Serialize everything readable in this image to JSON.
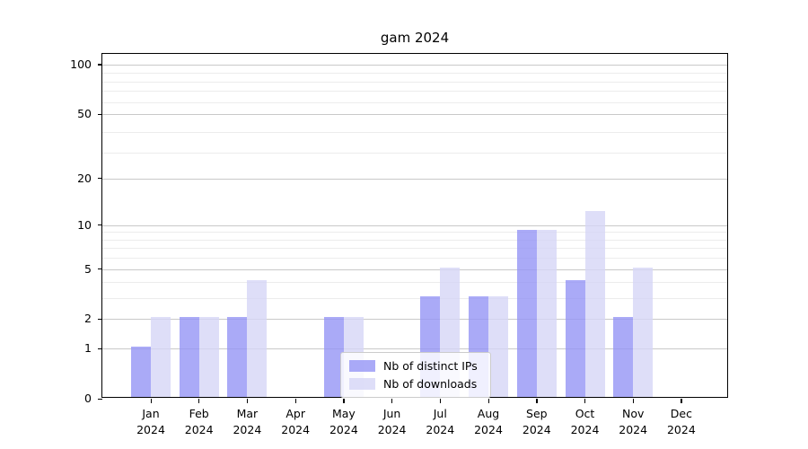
{
  "title": "gam 2024",
  "chart_data": {
    "type": "bar",
    "title": "gam 2024",
    "categories": [
      "Jan 2024",
      "Feb 2024",
      "Mar 2024",
      "Apr 2024",
      "May 2024",
      "Jun 2024",
      "Jul 2024",
      "Aug 2024",
      "Sep 2024",
      "Oct 2024",
      "Nov 2024",
      "Dec 2024"
    ],
    "series": [
      {
        "name": "Nb of distinct IPs",
        "color": "#9595f5",
        "values": [
          1,
          2,
          2,
          0,
          2,
          0,
          3,
          3,
          9,
          4,
          2,
          0
        ]
      },
      {
        "name": "Nb of downloads",
        "color": "#d6d6f6",
        "values": [
          2,
          2,
          4,
          0,
          2,
          0,
          5,
          3,
          9,
          12,
          5,
          0
        ]
      }
    ],
    "xlabel": "",
    "ylabel": "",
    "yscale": "log1p",
    "yticks": [
      0,
      1,
      2,
      5,
      10,
      20,
      50,
      100
    ],
    "minor_grid_values": [
      3,
      4,
      6,
      7,
      8,
      9,
      29,
      39,
      59,
      69,
      79,
      89
    ],
    "ylim": [
      0,
      116
    ],
    "grid": true,
    "legend_position": "lower center",
    "colors": {
      "major_grid": "#c9c9c9",
      "minor_grid": "#ececec",
      "axis": "#000000",
      "background": "#ffffff"
    }
  }
}
